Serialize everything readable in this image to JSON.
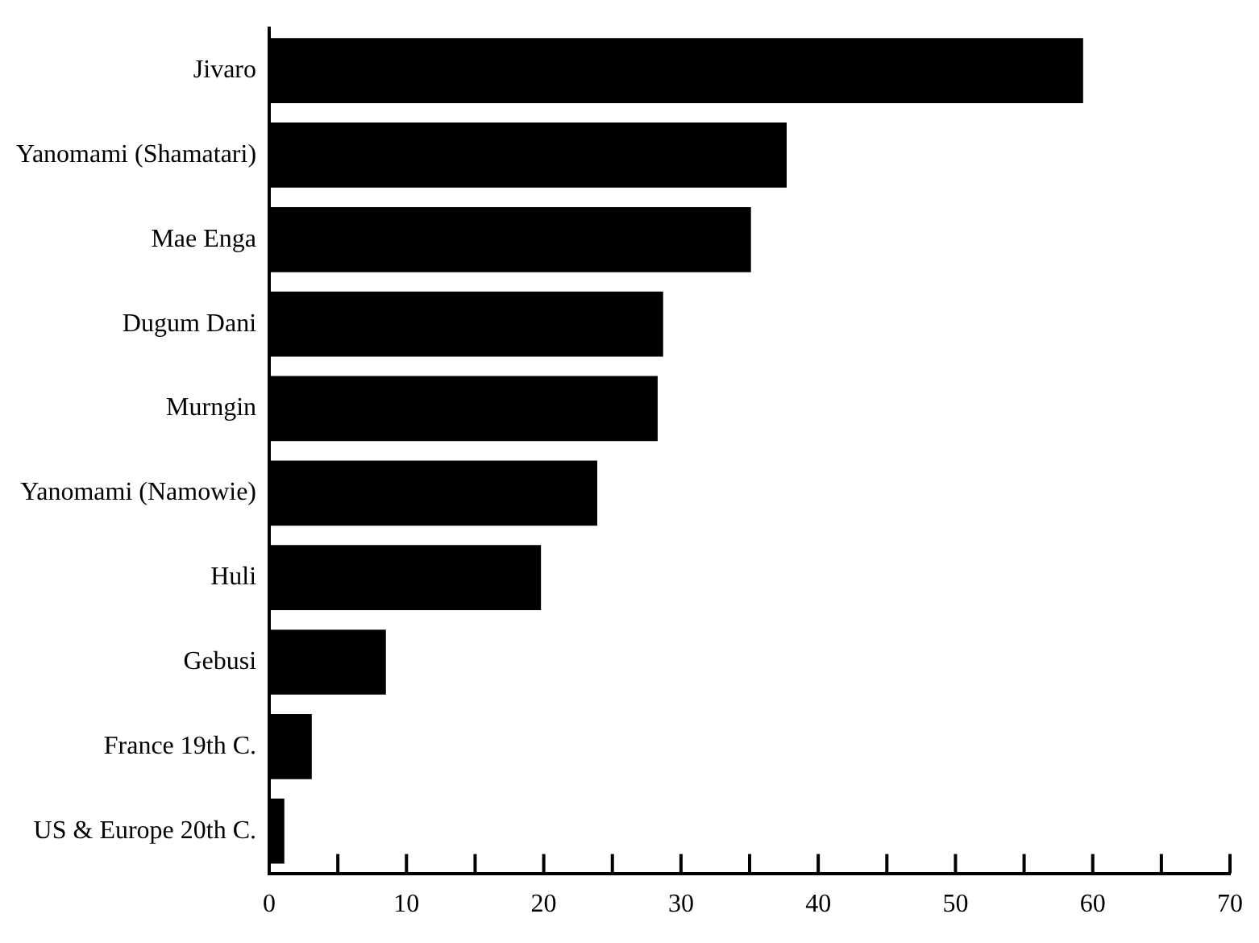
{
  "chart_data": {
    "type": "bar",
    "orientation": "horizontal",
    "categories": [
      "Jivaro",
      "Yanomami (Shamatari)",
      "Mae Enga",
      "Dugum Dani",
      "Murngin",
      "Yanomami (Namowie)",
      "Huli",
      "Gebusi",
      "France 19th C.",
      "US & Europe 20th C."
    ],
    "values": [
      59.3,
      37.7,
      35.1,
      28.7,
      28.3,
      23.9,
      19.8,
      8.5,
      3.1,
      1.1
    ],
    "color": "#000000",
    "xlim": [
      0,
      70
    ],
    "xticks": [
      0,
      {
        "value": 5,
        "label": null
      },
      10,
      {
        "value": 15,
        "label": null
      },
      20,
      {
        "value": 25,
        "label": null
      },
      30,
      {
        "value": 35,
        "label": null
      },
      40,
      {
        "value": 45,
        "label": null
      },
      50,
      {
        "value": 55,
        "label": null
      },
      60,
      {
        "value": 65,
        "label": null
      },
      70
    ]
  }
}
